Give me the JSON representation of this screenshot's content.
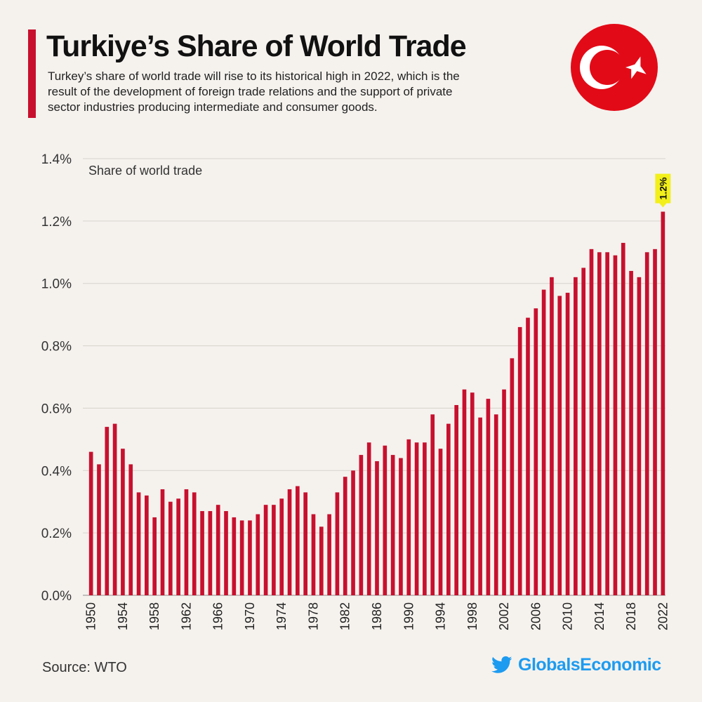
{
  "title": "Turkiye’s Share of World Trade",
  "subtitle": "Turkey’s share of world trade will rise to its historical high in 2022, which is the result of the development of foreign trade relations and the support of private sector industries producing intermediate and consumer goods.",
  "flag_icon": "turkey-flag-icon",
  "source": "Source: WTO",
  "brand": {
    "name": "GlobalsEconomic",
    "icon": "twitter-bird-icon",
    "color": "#1d9bf0"
  },
  "colors": {
    "bar": "#c8102e",
    "accent": "#c8102e",
    "highlight": "#f2ef1b",
    "background": "#f5f2ee"
  },
  "chart_data": {
    "type": "bar",
    "title": "Turkiye’s Share of World Trade",
    "ylabel": "Share of world trade",
    "xlabel": "",
    "ylim": [
      0,
      1.4
    ],
    "y_ticks": [
      "0.0%",
      "0.2%",
      "0.4%",
      "0.6%",
      "0.8%",
      "1.0%",
      "1.2%",
      "1.4%"
    ],
    "y_tick_values": [
      0,
      0.2,
      0.4,
      0.6,
      0.8,
      1.0,
      1.2,
      1.4
    ],
    "x_tick_labels": [
      "1950",
      "1954",
      "1958",
      "1962",
      "1966",
      "1970",
      "1974",
      "1978",
      "1982",
      "1986",
      "1990",
      "1994",
      "1998",
      "2002",
      "2006",
      "2010",
      "2014",
      "2018",
      "2022"
    ],
    "categories": [
      1950,
      1951,
      1952,
      1953,
      1954,
      1955,
      1956,
      1957,
      1958,
      1959,
      1960,
      1961,
      1962,
      1963,
      1964,
      1965,
      1966,
      1967,
      1968,
      1969,
      1970,
      1971,
      1972,
      1973,
      1974,
      1975,
      1976,
      1977,
      1978,
      1979,
      1980,
      1981,
      1982,
      1983,
      1984,
      1985,
      1986,
      1987,
      1988,
      1989,
      1990,
      1991,
      1992,
      1993,
      1994,
      1995,
      1996,
      1997,
      1998,
      1999,
      2000,
      2001,
      2002,
      2003,
      2004,
      2005,
      2006,
      2007,
      2008,
      2009,
      2010,
      2011,
      2012,
      2013,
      2014,
      2015,
      2016,
      2017,
      2018,
      2019,
      2020,
      2021,
      2022
    ],
    "values": [
      0.46,
      0.42,
      0.54,
      0.55,
      0.47,
      0.42,
      0.33,
      0.32,
      0.25,
      0.34,
      0.3,
      0.31,
      0.34,
      0.33,
      0.27,
      0.27,
      0.29,
      0.27,
      0.25,
      0.24,
      0.24,
      0.26,
      0.29,
      0.29,
      0.31,
      0.34,
      0.35,
      0.33,
      0.26,
      0.22,
      0.26,
      0.33,
      0.38,
      0.4,
      0.45,
      0.49,
      0.43,
      0.48,
      0.45,
      0.44,
      0.5,
      0.49,
      0.49,
      0.58,
      0.47,
      0.55,
      0.61,
      0.66,
      0.65,
      0.57,
      0.63,
      0.58,
      0.66,
      0.76,
      0.86,
      0.89,
      0.92,
      0.98,
      1.02,
      0.96,
      0.97,
      1.02,
      1.05,
      1.11,
      1.1,
      1.1,
      1.09,
      1.13,
      1.04,
      1.02,
      1.1,
      1.11,
      1.23
    ],
    "annotation": {
      "label": "1.2%",
      "year": 2022
    }
  }
}
